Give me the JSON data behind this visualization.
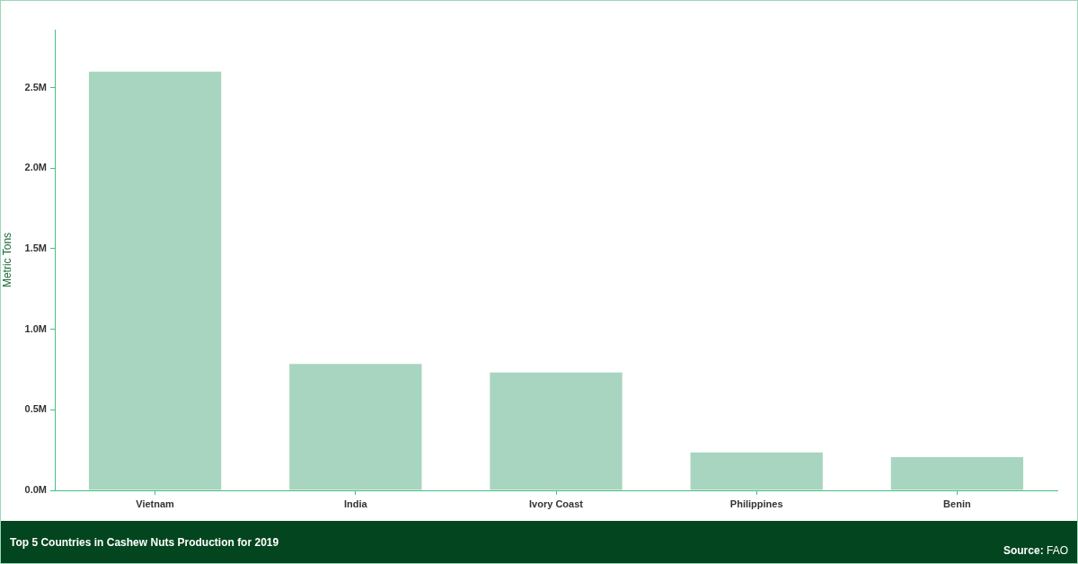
{
  "chart_data": {
    "type": "bar",
    "title": "Top 5 Countries in Cashew Nuts Production for 2019",
    "ylabel": "Metric Tons",
    "categories": [
      "Vietnam",
      "India",
      "Ivory Coast",
      "Philippines",
      "Benin"
    ],
    "values": [
      2600000,
      785000,
      732000,
      235000,
      206000
    ],
    "color": "#a8d5c0",
    "ylim": [
      0,
      2860000
    ],
    "yticks": [
      {
        "value": 0,
        "label": "0.0M"
      },
      {
        "value": 500000,
        "label": "0.5M"
      },
      {
        "value": 1000000,
        "label": "1.0M"
      },
      {
        "value": 1500000,
        "label": "1.5M"
      },
      {
        "value": 2000000,
        "label": "2.0M"
      },
      {
        "value": 2500000,
        "label": "2.5M"
      }
    ],
    "grid": false,
    "legend": false,
    "annotations": [
      "Source: FAO"
    ]
  }
}
